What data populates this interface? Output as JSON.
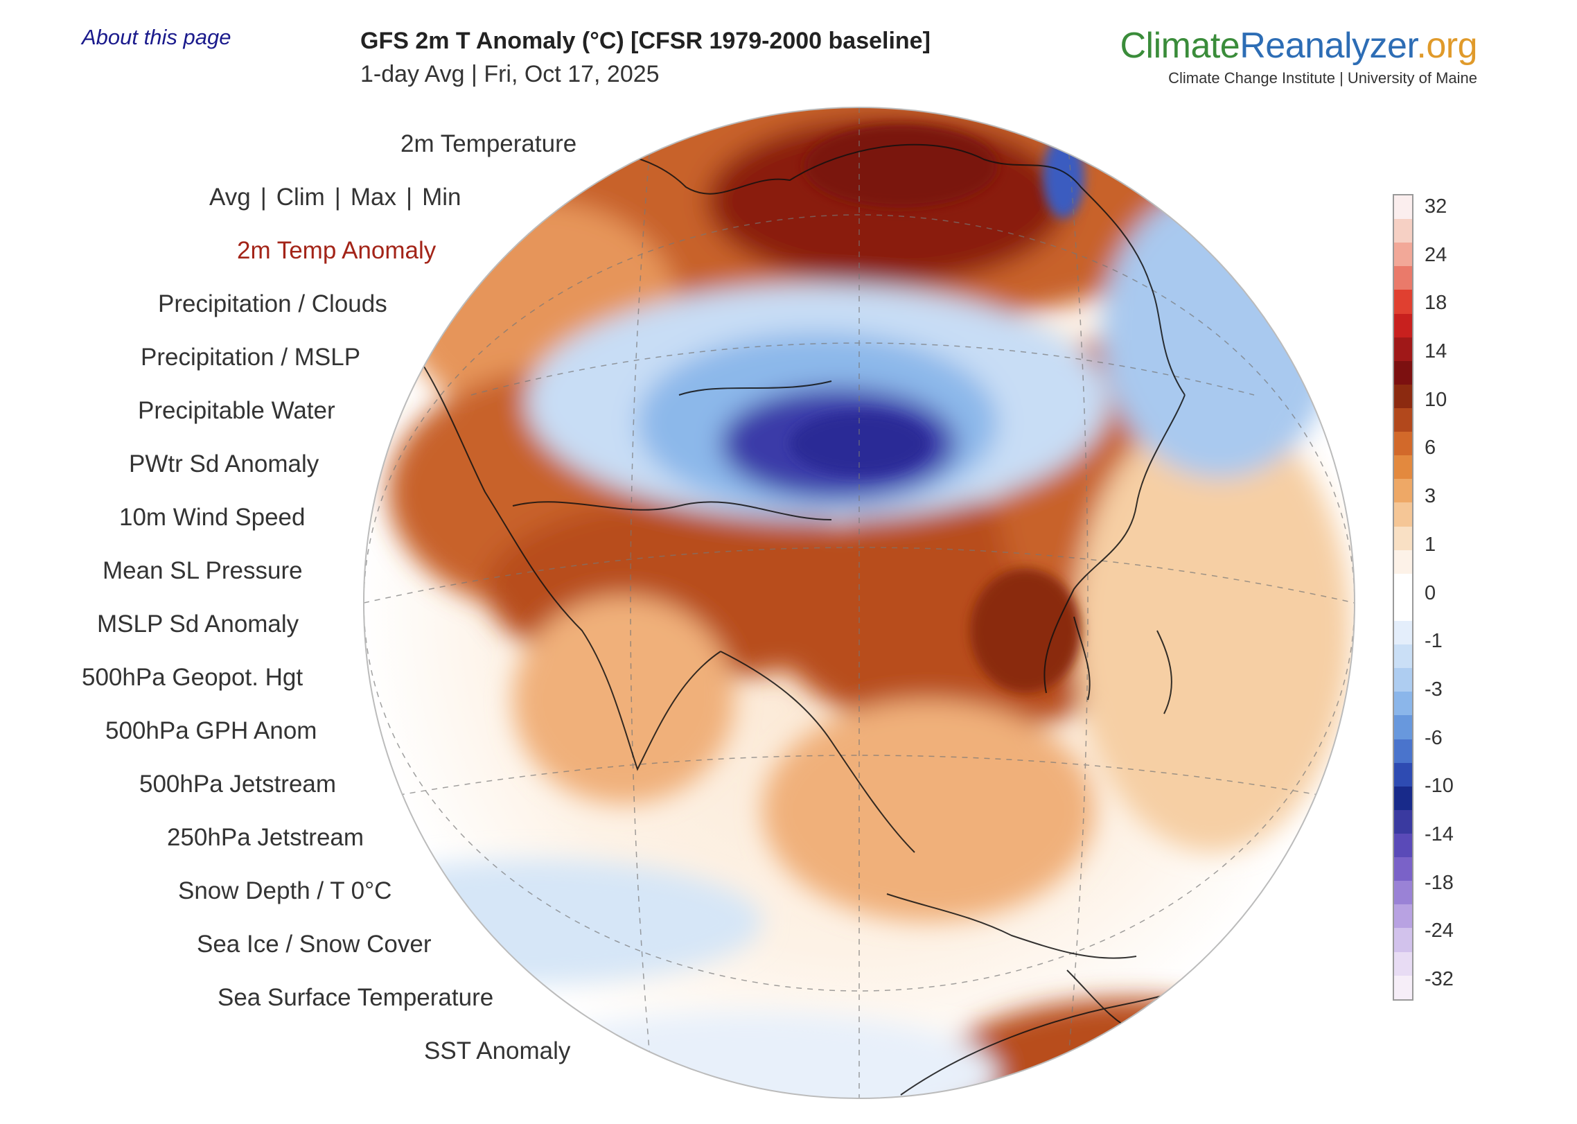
{
  "header": {
    "about_link": "About this page",
    "title": "GFS 2m T Anomaly (°C) [CFSR 1979-2000 baseline]",
    "subtitle": "1-day Avg | Fri, Oct 17, 2025"
  },
  "logo": {
    "part1": "Climate",
    "part2": "Reanalyzer",
    "part3": ".org",
    "tagline": "Climate Change Institute | University of Maine"
  },
  "menu": {
    "temperature_header": "2m Temperature",
    "variants": [
      "Avg",
      "Clim",
      "Max",
      "Min"
    ],
    "items": [
      "2m Temp Anomaly",
      "Precipitation / Clouds",
      "Precipitation / MSLP",
      "Precipitable Water",
      "PWtr Sd Anomaly",
      "10m Wind Speed",
      "Mean SL Pressure",
      "MSLP Sd Anomaly",
      "500hPa Geopot. Hgt",
      "500hPa GPH Anom",
      "500hPa Jetstream",
      "250hPa Jetstream",
      "Snow Depth / T 0°C",
      "Sea Ice / Snow Cover",
      "Sea Surface Temperature",
      "SST Anomaly"
    ],
    "active_index": 0
  },
  "colorbar": {
    "labels": [
      "32",
      "24",
      "18",
      "14",
      "10",
      "6",
      "3",
      "1",
      "0",
      "-1",
      "-3",
      "-6",
      "-10",
      "-14",
      "-18",
      "-24",
      "-32"
    ],
    "colors": [
      "#fbeeee",
      "#f6d0c4",
      "#f2a898",
      "#ea7a6a",
      "#e04030",
      "#c8201e",
      "#a01818",
      "#7c1010",
      "#8c2a10",
      "#b2481c",
      "#d2692a",
      "#e3893e",
      "#eea866",
      "#f5c696",
      "#f9e0c4",
      "#fdf2e8",
      "#ffffff",
      "#ffffff",
      "#e4eefb",
      "#cadff6",
      "#aecdf1",
      "#8bb6ea",
      "#6898dd",
      "#4a74cc",
      "#2e4bb2",
      "#182a8a",
      "#3a3aa0",
      "#5a4ab8",
      "#7a62c8",
      "#9a82d6",
      "#b8a2e2",
      "#d2c2ec",
      "#e8dcf4",
      "#f6eef8"
    ]
  },
  "map": {
    "description_colors": {
      "warm_strong": "#8a1c0c",
      "warm": "#c8622a",
      "warm_light": "#f1bb8a",
      "cold": "#8cb8ea",
      "cold_strong": "#2e2ea0"
    }
  }
}
